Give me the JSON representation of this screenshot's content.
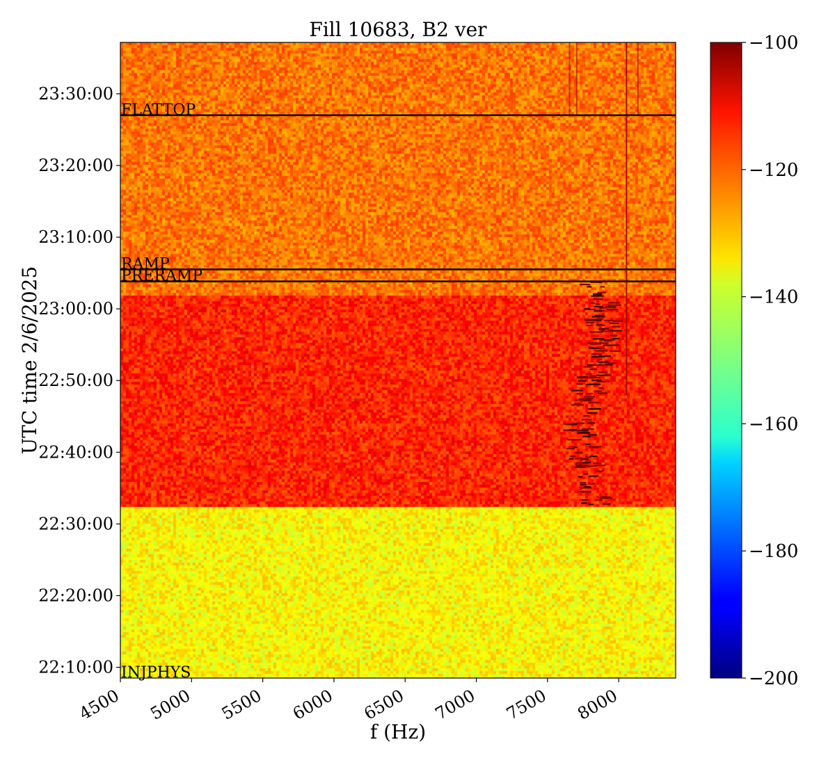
{
  "chart_data": {
    "type": "heatmap",
    "title": "Fill 10683, B2 ver",
    "xlabel": "f (Hz)",
    "ylabel": "UTC time 2/6/2025",
    "xlim": [
      4500,
      8400
    ],
    "ylim": [
      "22:08:30",
      "23:37:10"
    ],
    "x_ticks": [
      4500,
      5000,
      5500,
      6000,
      6500,
      7000,
      7500,
      8000
    ],
    "y_ticks": [
      "22:10:00",
      "22:20:00",
      "22:30:00",
      "22:40:00",
      "22:50:00",
      "23:00:00",
      "23:10:00",
      "23:20:00",
      "23:30:00"
    ],
    "colorbar": {
      "range": [
        -200,
        -100
      ],
      "ticks": [
        -100,
        -120,
        -140,
        -160,
        -180,
        -200
      ],
      "tick_labels": [
        "−100",
        "−120",
        "−140",
        "−160",
        "−180",
        "−200"
      ],
      "colormap": "jet"
    },
    "regions": [
      {
        "from": "22:08:30",
        "to": "22:32:30",
        "level": -137
      },
      {
        "from": "22:32:30",
        "to": "23:02:00",
        "level": -116
      },
      {
        "from": "23:02:00",
        "to": "23:37:10",
        "level": -124
      }
    ],
    "annotations": [
      {
        "label": "FLATTOP",
        "time": "23:27:00",
        "line": true
      },
      {
        "label": "RAMP",
        "time": "23:05:30",
        "line": true
      },
      {
        "label": "PRERAMP",
        "time": "23:03:50",
        "line": true
      },
      {
        "label": "INJPHYS",
        "time": "22:08:30",
        "line": false
      }
    ]
  }
}
